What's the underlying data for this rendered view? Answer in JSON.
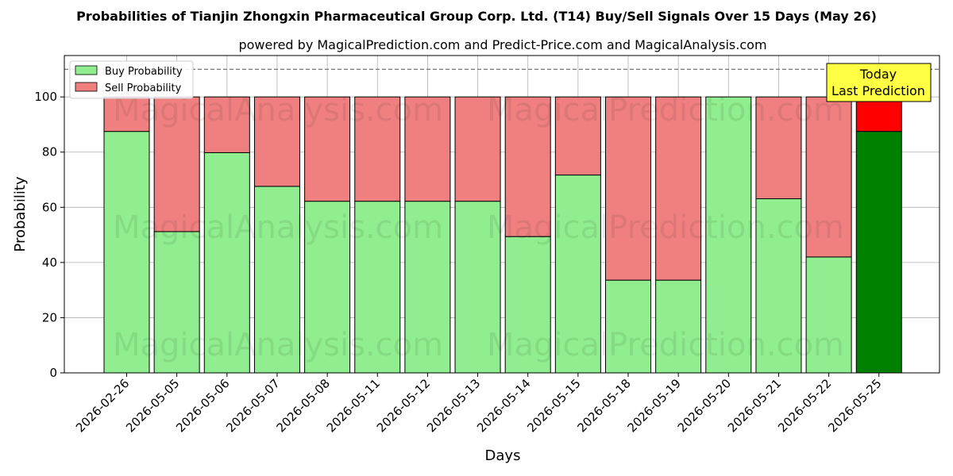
{
  "chart_data": {
    "type": "bar",
    "stacked": true,
    "title": "Probabilities of Tianjin Zhongxin Pharmaceutical Group Corp. Ltd. (T14) Buy/Sell Signals Over 15 Days (May 26)",
    "subtitle": "powered by MagicalPrediction.com and Predict-Price.com and MagicalAnalysis.com",
    "xlabel": "Days",
    "ylabel": "Probability",
    "ylim": [
      0,
      115
    ],
    "yticks": [
      0,
      20,
      40,
      60,
      80,
      100
    ],
    "reference_line": 110,
    "grid": true,
    "legend_position": "top-left",
    "categories": [
      "2026-02-26",
      "2026-05-05",
      "2026-05-06",
      "2026-05-07",
      "2026-05-08",
      "2026-05-11",
      "2026-05-12",
      "2026-05-13",
      "2026-05-14",
      "2026-05-15",
      "2026-05-18",
      "2026-05-19",
      "2026-05-20",
      "2026-05-21",
      "2026-05-22",
      "2026-05-25"
    ],
    "series": [
      {
        "name": "Buy Probability",
        "color": "#90ee90",
        "highlight_color": "#008000",
        "values": [
          87.5,
          51.2,
          79.8,
          67.6,
          62.2,
          62.2,
          62.2,
          62.2,
          49.4,
          71.7,
          33.6,
          33.6,
          100,
          63.1,
          42.0,
          87.5
        ]
      },
      {
        "name": "Sell Probability",
        "color": "#f08080",
        "highlight_color": "#ff0000",
        "values": [
          12.5,
          48.8,
          20.2,
          32.4,
          37.8,
          37.8,
          37.8,
          37.8,
          50.6,
          28.3,
          66.4,
          66.4,
          0,
          36.9,
          58.0,
          12.5
        ]
      }
    ],
    "highlight_index": 15,
    "annotation": {
      "line1": "Today",
      "line2": "Last Prediction",
      "color": "#ffff44"
    },
    "watermarks": [
      "MagicalAnalysis.com",
      "MagicalPrediction.com"
    ]
  }
}
